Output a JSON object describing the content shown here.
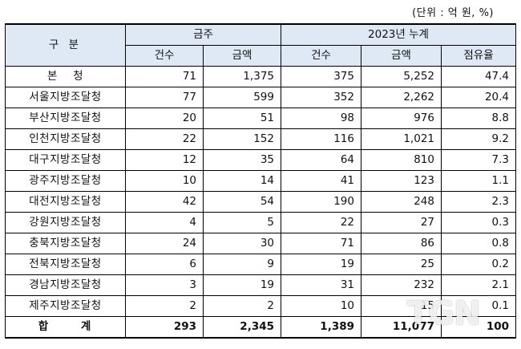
{
  "unit_note": "(단위 : 억 원, %)",
  "header": {
    "category": "구 분",
    "group_this_week": "금주",
    "group_cumulative": "2023년 누계",
    "col_count": "건수",
    "col_amount": "금액",
    "col_count2": "건수",
    "col_amount2": "금액",
    "col_share": "점유율"
  },
  "rows": [
    {
      "name": "본    청",
      "week_count": "71",
      "week_amount": "1,375",
      "cum_count": "375",
      "cum_amount": "5,252",
      "share": "47.4"
    },
    {
      "name": "서울지방조달청",
      "week_count": "77",
      "week_amount": "599",
      "cum_count": "352",
      "cum_amount": "2,262",
      "share": "20.4"
    },
    {
      "name": "부산지방조달청",
      "week_count": "20",
      "week_amount": "51",
      "cum_count": "98",
      "cum_amount": "976",
      "share": "8.8"
    },
    {
      "name": "인천지방조달청",
      "week_count": "22",
      "week_amount": "152",
      "cum_count": "116",
      "cum_amount": "1,021",
      "share": "9.2"
    },
    {
      "name": "대구지방조달청",
      "week_count": "12",
      "week_amount": "35",
      "cum_count": "64",
      "cum_amount": "810",
      "share": "7.3"
    },
    {
      "name": "광주지방조달청",
      "week_count": "10",
      "week_amount": "14",
      "cum_count": "41",
      "cum_amount": "123",
      "share": "1.1"
    },
    {
      "name": "대전지방조달청",
      "week_count": "42",
      "week_amount": "54",
      "cum_count": "190",
      "cum_amount": "248",
      "share": "2.3"
    },
    {
      "name": "강원지방조달청",
      "week_count": "4",
      "week_amount": "5",
      "cum_count": "22",
      "cum_amount": "27",
      "share": "0.3"
    },
    {
      "name": "충북지방조달청",
      "week_count": "24",
      "week_amount": "30",
      "cum_count": "71",
      "cum_amount": "86",
      "share": "0.8"
    },
    {
      "name": "전북지방조달청",
      "week_count": "6",
      "week_amount": "9",
      "cum_count": "19",
      "cum_amount": "25",
      "share": "0.2"
    },
    {
      "name": "경남지방조달청",
      "week_count": "3",
      "week_amount": "19",
      "cum_count": "31",
      "cum_amount": "232",
      "share": "2.1"
    },
    {
      "name": "제주지방조달청",
      "week_count": "2",
      "week_amount": "2",
      "cum_count": "10",
      "cum_amount": "15",
      "share": "0.1"
    }
  ],
  "total": {
    "name": "합 계",
    "week_count": "293",
    "week_amount": "2,345",
    "cum_count": "1,389",
    "cum_amount": "11,077",
    "share": "100"
  },
  "watermark": "TGN"
}
